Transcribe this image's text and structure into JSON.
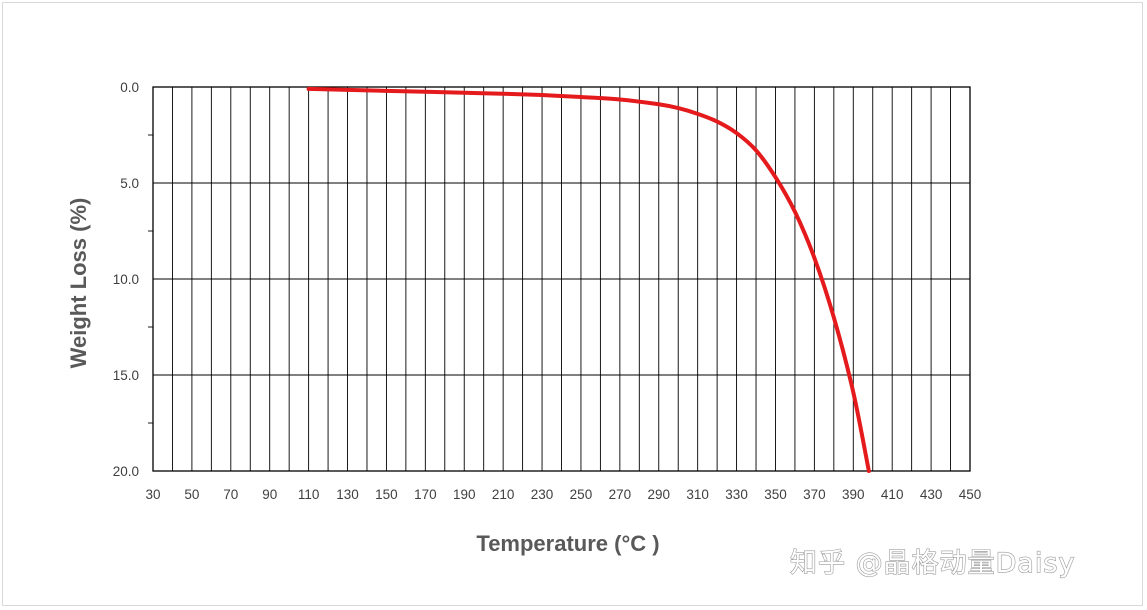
{
  "chart_data": {
    "type": "line",
    "title": "",
    "xlabel": "Temperature (°C )",
    "ylabel": "Weight Loss (%)",
    "x_ticks": [
      "30",
      "50",
      "70",
      "90",
      "110",
      "130",
      "150",
      "170",
      "190",
      "210",
      "230",
      "250",
      "270",
      "290",
      "310",
      "330",
      "350",
      "370",
      "390",
      "410",
      "430",
      "450"
    ],
    "y_ticks": [
      "0.0",
      "5.0",
      "10.0",
      "15.0",
      "20.0"
    ],
    "xlim": [
      30,
      450
    ],
    "ylim": [
      0,
      20
    ],
    "y_inverted": true,
    "grid": true,
    "series": [
      {
        "color": "#e41a1c",
        "points": [
          [
            110,
            0.1
          ],
          [
            130,
            0.15
          ],
          [
            150,
            0.2
          ],
          [
            170,
            0.25
          ],
          [
            190,
            0.3
          ],
          [
            210,
            0.35
          ],
          [
            230,
            0.42
          ],
          [
            250,
            0.52
          ],
          [
            270,
            0.65
          ],
          [
            290,
            0.9
          ],
          [
            300,
            1.1
          ],
          [
            310,
            1.4
          ],
          [
            320,
            1.8
          ],
          [
            330,
            2.4
          ],
          [
            340,
            3.3
          ],
          [
            350,
            4.7
          ],
          [
            360,
            6.5
          ],
          [
            370,
            8.9
          ],
          [
            380,
            12.0
          ],
          [
            390,
            15.9
          ],
          [
            398,
            20.0
          ]
        ]
      }
    ]
  },
  "watermark": "知乎 @晶格动量Daisy"
}
